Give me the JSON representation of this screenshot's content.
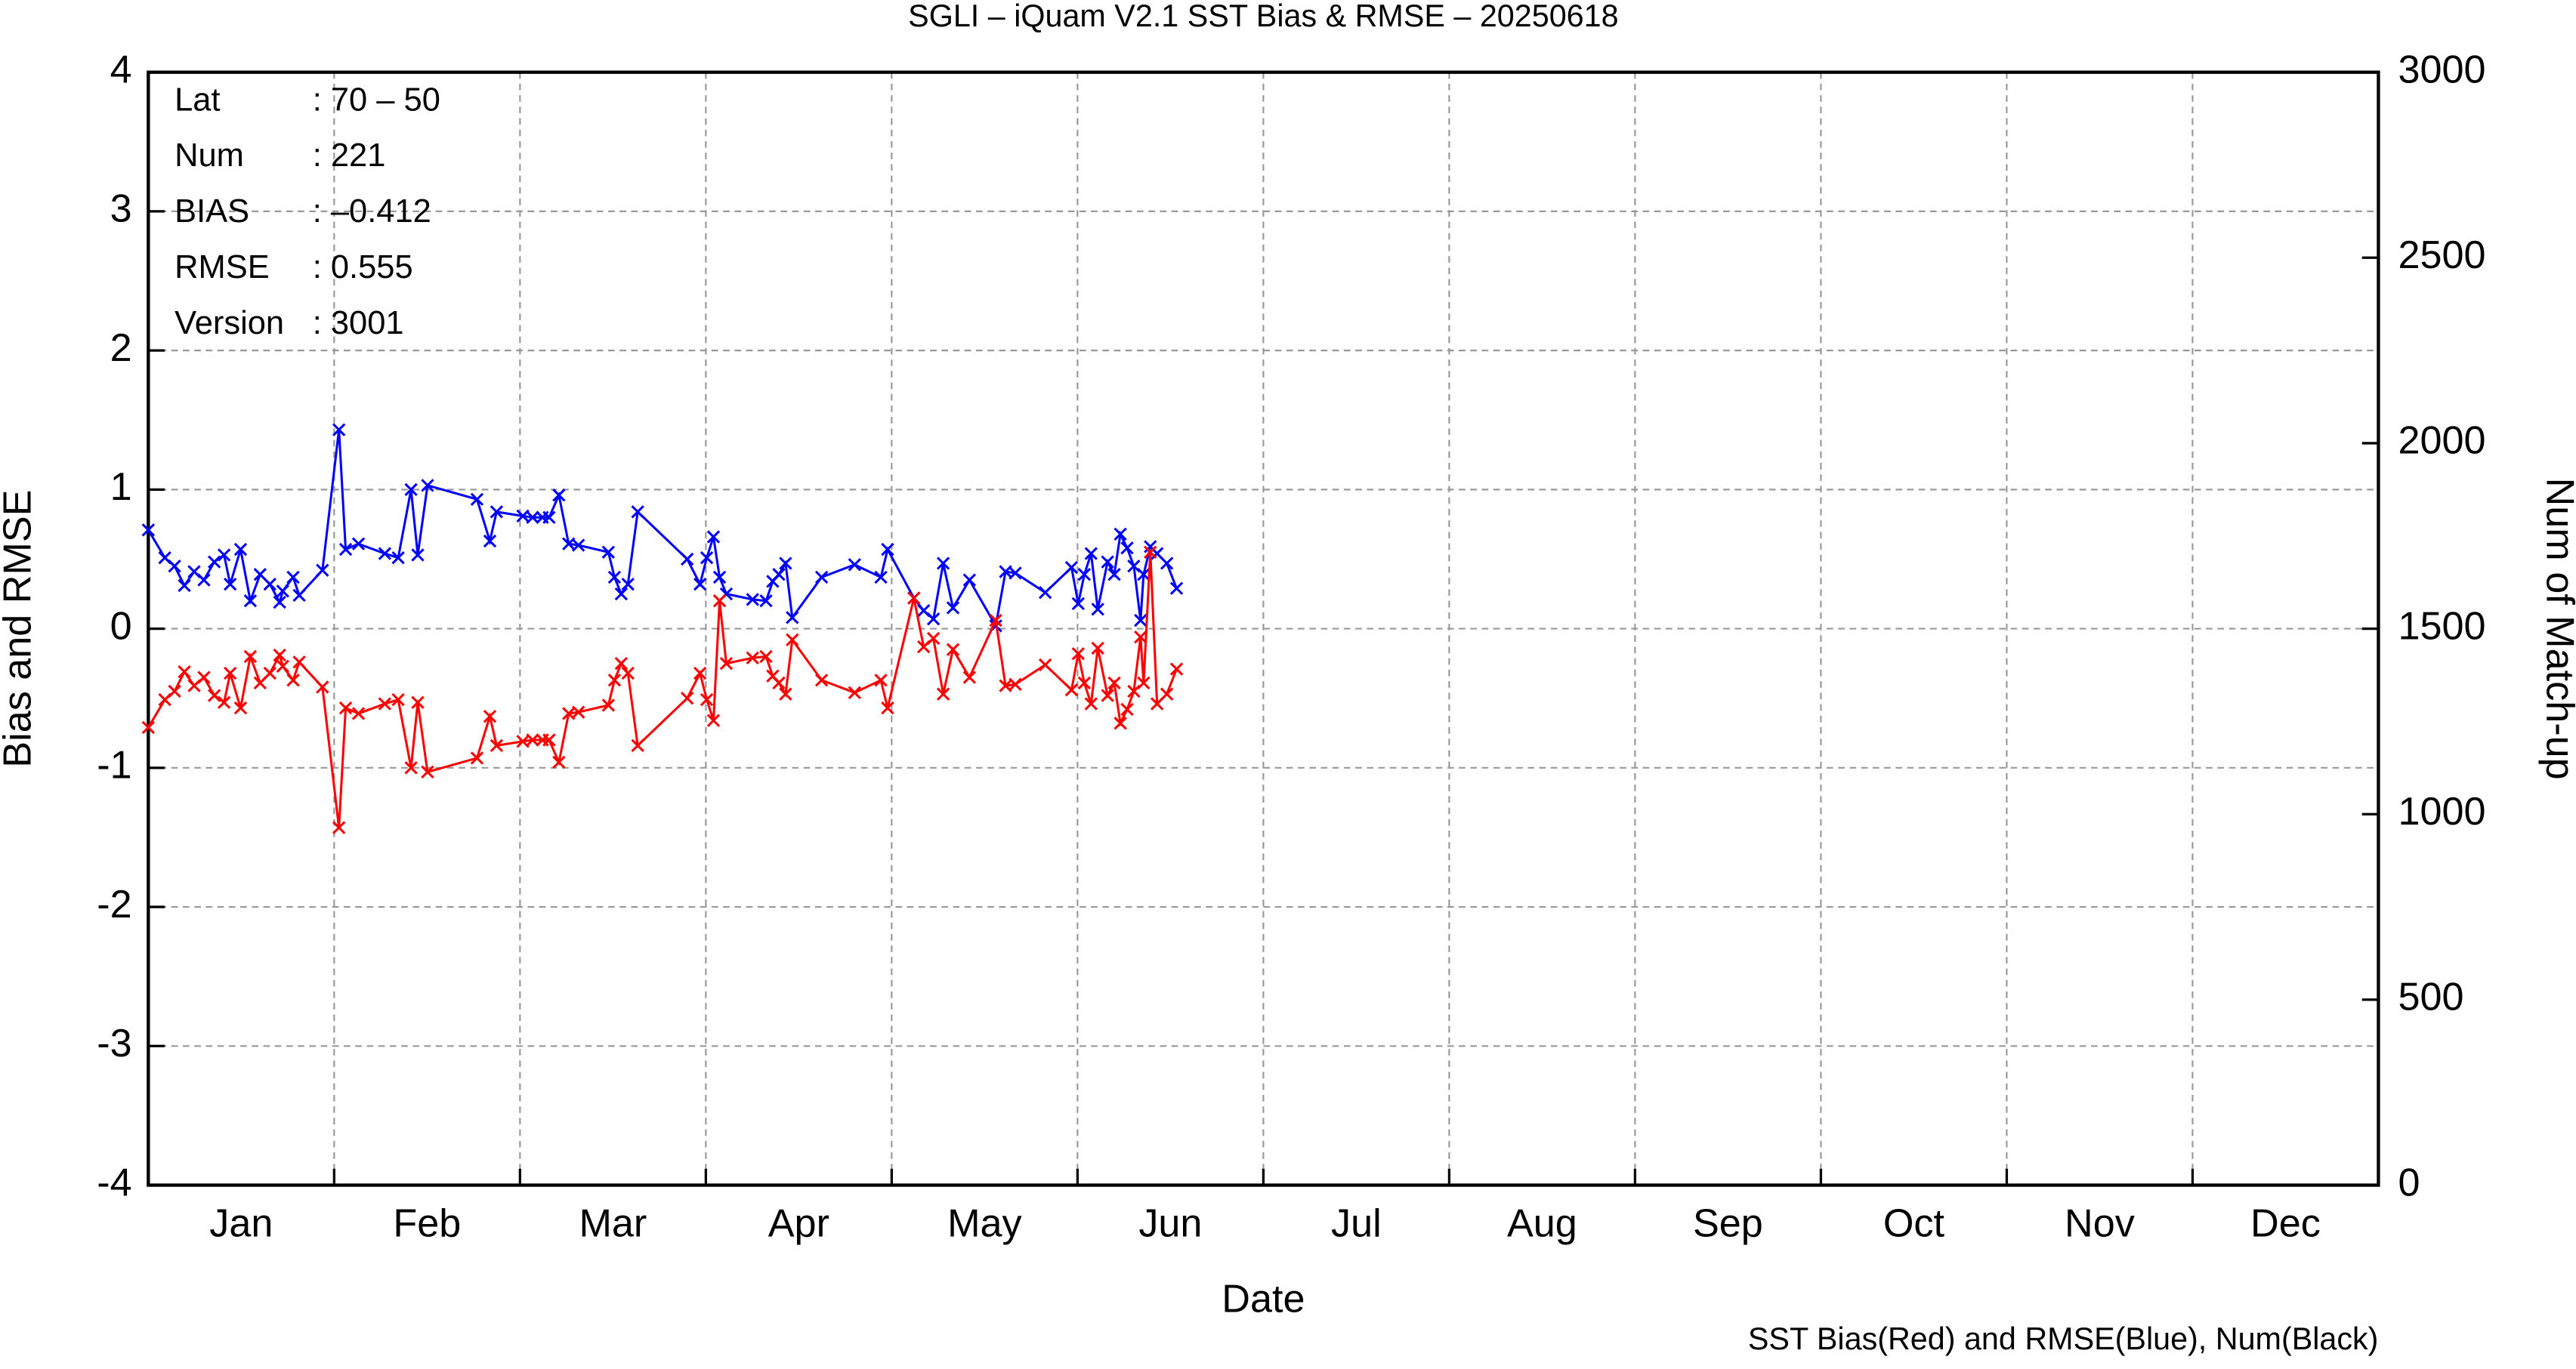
{
  "chart_data": {
    "type": "line",
    "title": "SGLI – iQuam V2.1 SST Bias & RMSE  – 20250618",
    "xlabel": "Date",
    "ylabel": "Bias and RMSE",
    "y2label": "Num of Match-up",
    "footer": "SST Bias(Red) and RMSE(Blue), Num(Black)",
    "info": [
      {
        "label": "Lat",
        "value": ": 70 – 50"
      },
      {
        "label": "Num",
        "value": ": 221"
      },
      {
        "label": "BIAS",
        "value": ": –0.412"
      },
      {
        "label": "RMSE",
        "value": ": 0.555"
      },
      {
        "label": "Version",
        "value": ": 3001"
      }
    ],
    "categories": [
      "Jan",
      "Feb",
      "Mar",
      "Apr",
      "May",
      "Jun",
      "Jul",
      "Aug",
      "Sep",
      "Oct",
      "Nov",
      "Dec"
    ],
    "xlim": [
      0,
      365
    ],
    "ylim": [
      -4,
      4
    ],
    "yticks": [
      -4,
      -3,
      -2,
      -1,
      0,
      1,
      2,
      3,
      4
    ],
    "y2lim": [
      0,
      3000
    ],
    "y2ticks": [
      0,
      500,
      1000,
      1500,
      2000,
      2500,
      3000
    ],
    "grid": true,
    "marker": "x",
    "x": [
      0,
      2.7,
      4.3,
      5.9,
      7.5,
      9.1,
      10.8,
      12.4,
      13.4,
      15.1,
      16.7,
      18.3,
      19.9,
      21.5,
      22,
      23.7,
      24.7,
      28.5,
      31.2,
      32.3,
      34.4,
      38.7,
      40.9,
      43,
      44.1,
      45.7,
      53.8,
      55.9,
      57,
      61.3,
      62.9,
      64.5,
      65.6,
      67.2,
      68.8,
      70.4,
      75.3,
      76.3,
      77.4,
      78.5,
      80.1,
      88.2,
      90.3,
      91.4,
      92.5,
      93.5,
      94.6,
      98.9,
      101.1,
      102.2,
      103.2,
      104.3,
      105.4,
      110.2,
      115.6,
      119.9,
      121,
      125.3,
      126.9,
      128.5,
      130.1,
      131.7,
      134.4,
      138.7,
      140.3,
      141.9,
      146.8,
      151.1,
      152.2,
      153.2,
      154.3,
      155.4,
      157,
      158.1,
      159.1,
      160.2,
      161.3,
      162.4,
      162.9,
      164,
      165.1,
      166.7,
      168.3
    ],
    "series": [
      {
        "color": "#0000ff",
        "values": [
          0.71,
          0.51,
          0.45,
          0.31,
          0.41,
          0.35,
          0.48,
          0.53,
          0.32,
          0.57,
          0.2,
          0.39,
          0.32,
          0.19,
          0.27,
          0.37,
          0.24,
          0.42,
          1.43,
          0.57,
          0.61,
          0.54,
          0.51,
          1.0,
          0.53,
          1.03,
          0.93,
          0.63,
          0.84,
          0.81,
          0.8,
          0.8,
          0.8,
          0.96,
          0.61,
          0.6,
          0.55,
          0.37,
          0.25,
          0.32,
          0.84,
          0.5,
          0.32,
          0.51,
          0.66,
          0.37,
          0.25,
          0.21,
          0.2,
          0.34,
          0.39,
          0.47,
          0.08,
          0.37,
          0.46,
          0.37,
          0.57,
          0.22,
          0.13,
          0.07,
          0.47,
          0.15,
          0.35,
          0.02,
          0.41,
          0.4,
          0.26,
          0.44,
          0.18,
          0.39,
          0.54,
          0.14,
          0.48,
          0.39,
          0.68,
          0.58,
          0.45,
          0.06,
          0.39,
          0.59,
          0.54,
          0.47,
          0.29
        ]
      },
      {
        "color": "#ff0000",
        "values": [
          -0.71,
          -0.51,
          -0.45,
          -0.31,
          -0.41,
          -0.35,
          -0.48,
          -0.53,
          -0.32,
          -0.57,
          -0.2,
          -0.39,
          -0.32,
          -0.19,
          -0.27,
          -0.37,
          -0.24,
          -0.42,
          -1.43,
          -0.57,
          -0.61,
          -0.54,
          -0.51,
          -1.0,
          -0.53,
          -1.03,
          -0.93,
          -0.63,
          -0.84,
          -0.81,
          -0.8,
          -0.8,
          -0.8,
          -0.96,
          -0.61,
          -0.6,
          -0.55,
          -0.37,
          -0.25,
          -0.32,
          -0.84,
          -0.5,
          -0.32,
          -0.51,
          -0.66,
          0.2,
          -0.25,
          -0.21,
          -0.2,
          -0.34,
          -0.39,
          -0.47,
          -0.08,
          -0.37,
          -0.46,
          -0.37,
          -0.57,
          0.22,
          -0.13,
          -0.07,
          -0.47,
          -0.15,
          -0.35,
          0.06,
          -0.41,
          -0.4,
          -0.26,
          -0.44,
          -0.18,
          -0.39,
          -0.54,
          -0.14,
          -0.48,
          -0.39,
          -0.68,
          -0.58,
          -0.45,
          -0.06,
          -0.39,
          0.55,
          -0.54,
          -0.47,
          -0.29
        ]
      }
    ]
  }
}
